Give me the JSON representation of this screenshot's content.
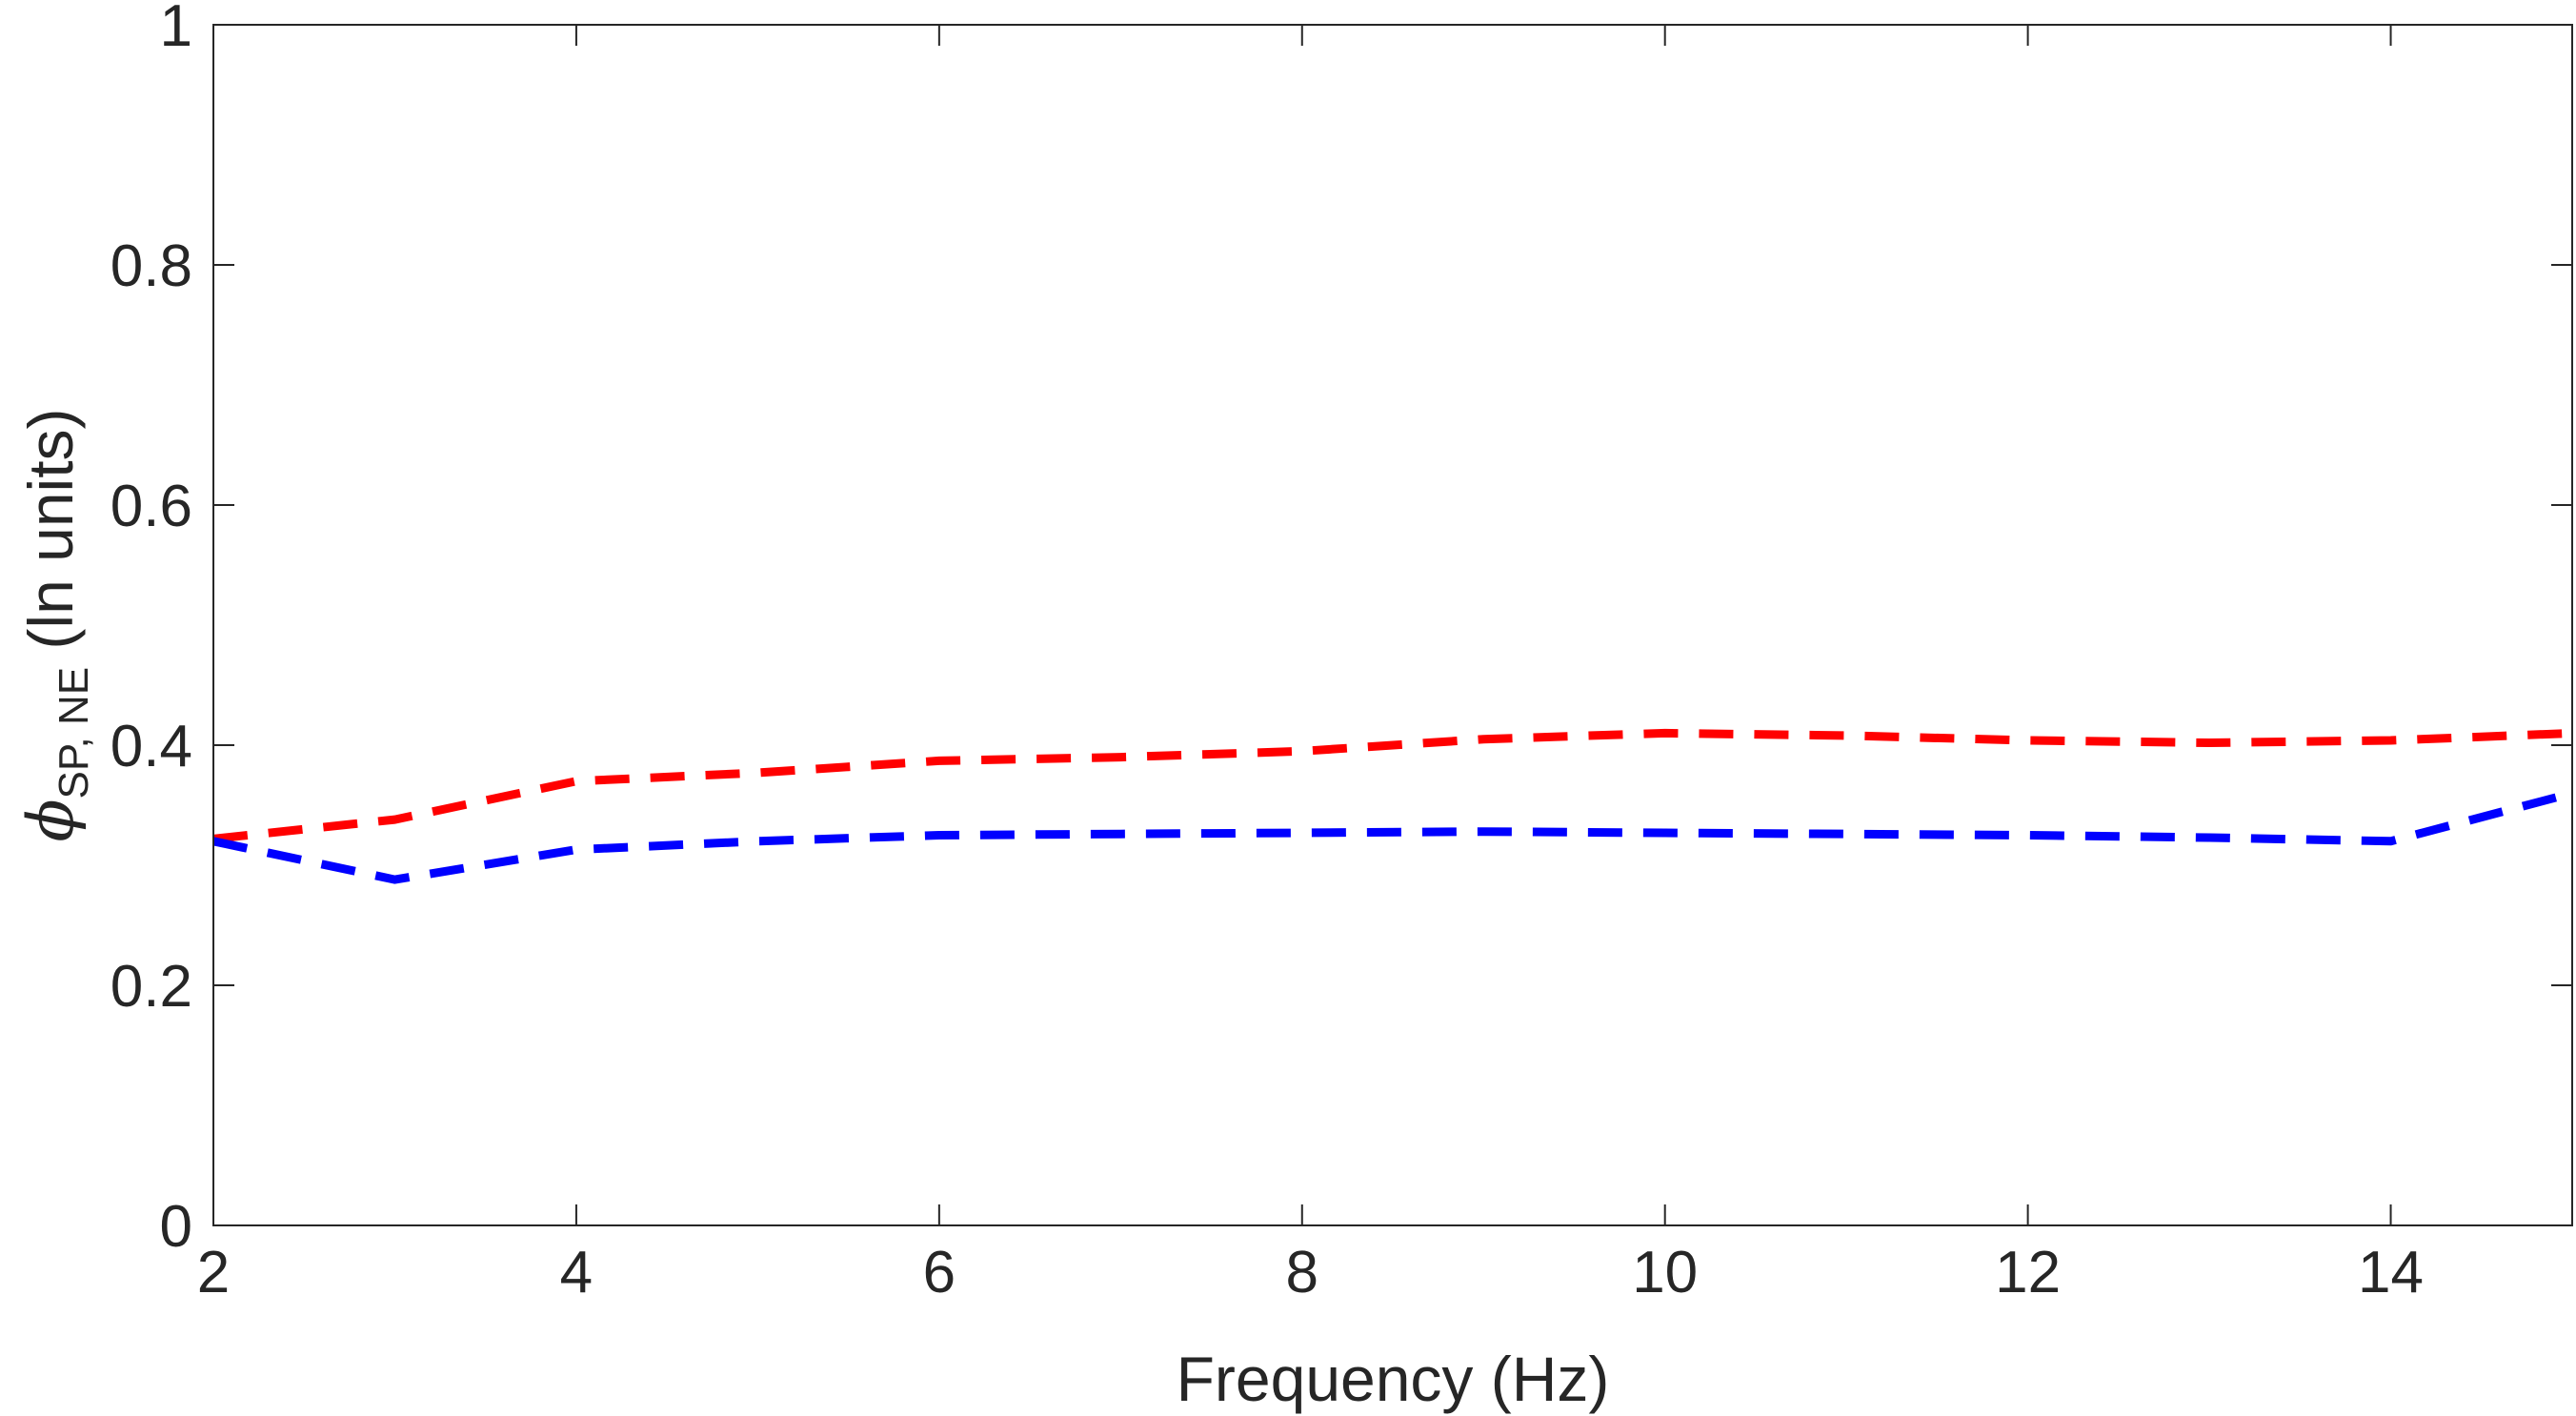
{
  "chart_data": {
    "type": "line",
    "xlabel": "Frequency (Hz)",
    "ylabel": {
      "symbol": "ϕ",
      "subscript": "SP, NE",
      "unit": " (ln units)"
    },
    "xlim": [
      2,
      15
    ],
    "ylim": [
      0,
      1
    ],
    "xticks": [
      "2",
      "4",
      "6",
      "8",
      "10",
      "12",
      "14"
    ],
    "yticks": [
      "0",
      "0.2",
      "0.4",
      "0.6",
      "0.8",
      "1"
    ],
    "grid": false,
    "series": [
      {
        "color": "#ff0000",
        "line_style": "dashed",
        "x": [
          2,
          3,
          4,
          5,
          6,
          7,
          8,
          9,
          10,
          11,
          12,
          13,
          14,
          15
        ],
        "y": [
          0.322,
          0.338,
          0.37,
          0.377,
          0.387,
          0.39,
          0.395,
          0.405,
          0.41,
          0.408,
          0.404,
          0.402,
          0.404,
          0.41
        ]
      },
      {
        "color": "#0000ff",
        "line_style": "dashed",
        "x": [
          2,
          3,
          4,
          5,
          6,
          7,
          8,
          9,
          10,
          11,
          12,
          13,
          14,
          15
        ],
        "y": [
          0.32,
          0.288,
          0.313,
          0.32,
          0.325,
          0.326,
          0.327,
          0.328,
          0.327,
          0.326,
          0.325,
          0.323,
          0.32,
          0.36
        ]
      }
    ]
  }
}
